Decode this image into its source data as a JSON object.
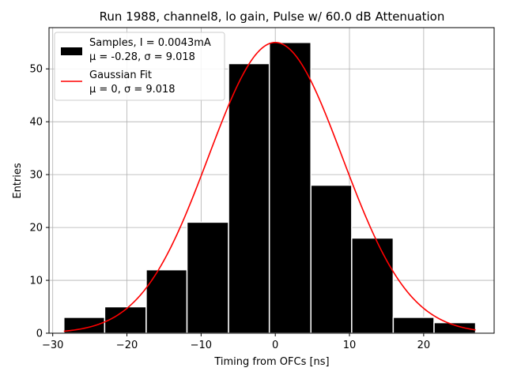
{
  "chart_data": {
    "type": "bar",
    "title": "Run 1988, channel8, lo gain, Pulse w/ 60.0 dB Attenuation",
    "xlabel": "Timing from OFCs [ns]",
    "ylabel": "Entries",
    "xlim": [
      -30.5,
      29.5
    ],
    "ylim": [
      0,
      57.8
    ],
    "xticks": [
      -30,
      -20,
      -10,
      0,
      10,
      20
    ],
    "yticks": [
      0,
      10,
      20,
      30,
      40,
      50
    ],
    "grid": true,
    "legend_position": "top-left",
    "bins": [
      {
        "x0": -28.5,
        "x1": -23.0,
        "count": 3
      },
      {
        "x0": -23.0,
        "x1": -17.4,
        "count": 5
      },
      {
        "x0": -17.4,
        "x1": -11.9,
        "count": 12
      },
      {
        "x0": -11.9,
        "x1": -6.3,
        "count": 21
      },
      {
        "x0": -6.3,
        "x1": -0.8,
        "count": 51
      },
      {
        "x0": -0.8,
        "x1": 4.8,
        "count": 55
      },
      {
        "x0": 4.8,
        "x1": 10.3,
        "count": 28
      },
      {
        "x0": 10.3,
        "x1": 15.9,
        "count": 18
      },
      {
        "x0": 15.9,
        "x1": 21.4,
        "count": 3
      },
      {
        "x0": 21.4,
        "x1": 27.0,
        "count": 2
      }
    ],
    "fit": {
      "type": "gaussian",
      "mu": 0,
      "sigma": 9.018,
      "amplitude": 55,
      "x_range": [
        -28.5,
        27.0
      ],
      "color": "#ff0000"
    },
    "series": [
      {
        "name": "Samples, I = 0.0043mA",
        "detail": "μ = -0.28, σ = 9.018",
        "color": "#000000"
      },
      {
        "name": "Gaussian Fit",
        "detail": "μ = 0, σ = 9.018",
        "color": "#ff0000"
      }
    ]
  }
}
